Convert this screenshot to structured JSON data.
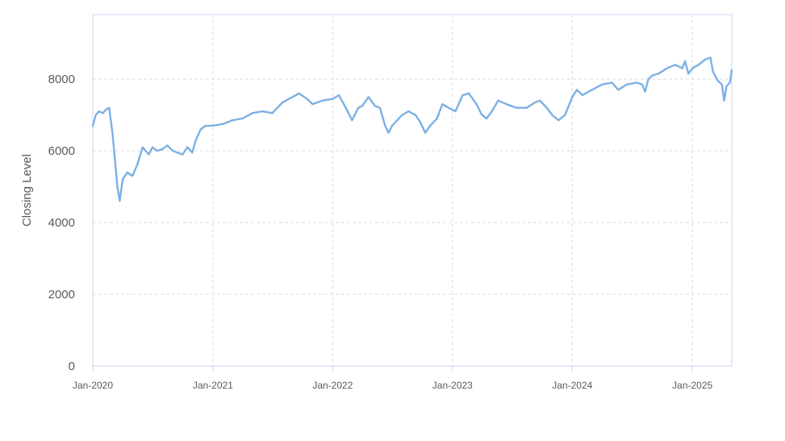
{
  "chart_data": {
    "type": "line",
    "title": "",
    "xlabel": "",
    "ylabel": "Closing Level",
    "x_range": [
      "2020-01-01",
      "2025-05-01"
    ],
    "ylim": [
      0,
      9800
    ],
    "grid": true,
    "y_ticks": [
      0,
      2000,
      4000,
      6000,
      8000
    ],
    "y_tick_labels": [
      "0",
      "2000",
      "4000",
      "6000",
      "8000"
    ],
    "x_ticks": [
      "2020-01-01",
      "2021-01-01",
      "2022-01-01",
      "2023-01-01",
      "2024-01-01",
      "2025-01-01"
    ],
    "x_tick_labels": [
      "Jan-2020",
      "Jan-2021",
      "Jan-2022",
      "Jan-2023",
      "Jan-2024",
      "Jan-2025"
    ],
    "series": [
      {
        "color": "#7cb0e4",
        "points": [
          [
            "2020-01-01",
            6700
          ],
          [
            "2020-01-10",
            7000
          ],
          [
            "2020-01-20",
            7100
          ],
          [
            "2020-02-01",
            7050
          ],
          [
            "2020-02-10",
            7150
          ],
          [
            "2020-02-20",
            7200
          ],
          [
            "2020-03-01",
            6500
          ],
          [
            "2020-03-10",
            5600
          ],
          [
            "2020-03-16",
            5000
          ],
          [
            "2020-03-23",
            4600
          ],
          [
            "2020-04-01",
            5200
          ],
          [
            "2020-04-15",
            5400
          ],
          [
            "2020-05-01",
            5300
          ],
          [
            "2020-05-15",
            5600
          ],
          [
            "2020-06-01",
            6100
          ],
          [
            "2020-06-10",
            6000
          ],
          [
            "2020-06-20",
            5900
          ],
          [
            "2020-07-01",
            6100
          ],
          [
            "2020-07-15",
            6000
          ],
          [
            "2020-08-01",
            6050
          ],
          [
            "2020-08-15",
            6150
          ],
          [
            "2020-09-01",
            6000
          ],
          [
            "2020-09-15",
            5950
          ],
          [
            "2020-10-01",
            5900
          ],
          [
            "2020-10-15",
            6100
          ],
          [
            "2020-10-30",
            5950
          ],
          [
            "2020-11-10",
            6300
          ],
          [
            "2020-11-25",
            6600
          ],
          [
            "2020-12-10",
            6700
          ],
          [
            "2021-01-01",
            6700
          ],
          [
            "2021-02-01",
            6750
          ],
          [
            "2021-03-01",
            6850
          ],
          [
            "2021-04-01",
            6900
          ],
          [
            "2021-05-01",
            7050
          ],
          [
            "2021-06-01",
            7100
          ],
          [
            "2021-07-01",
            7050
          ],
          [
            "2021-08-01",
            7350
          ],
          [
            "2021-09-01",
            7500
          ],
          [
            "2021-09-20",
            7600
          ],
          [
            "2021-10-15",
            7450
          ],
          [
            "2021-11-01",
            7300
          ],
          [
            "2021-12-01",
            7400
          ],
          [
            "2022-01-01",
            7450
          ],
          [
            "2022-01-20",
            7550
          ],
          [
            "2022-02-10",
            7200
          ],
          [
            "2022-03-01",
            6850
          ],
          [
            "2022-03-20",
            7200
          ],
          [
            "2022-04-01",
            7250
          ],
          [
            "2022-04-20",
            7500
          ],
          [
            "2022-05-10",
            7250
          ],
          [
            "2022-05-25",
            7200
          ],
          [
            "2022-06-10",
            6700
          ],
          [
            "2022-06-20",
            6500
          ],
          [
            "2022-07-01",
            6700
          ],
          [
            "2022-08-01",
            7000
          ],
          [
            "2022-08-20",
            7100
          ],
          [
            "2022-09-10",
            7000
          ],
          [
            "2022-09-25",
            6800
          ],
          [
            "2022-10-10",
            6500
          ],
          [
            "2022-10-25",
            6700
          ],
          [
            "2022-11-15",
            6900
          ],
          [
            "2022-12-01",
            7300
          ],
          [
            "2022-12-20",
            7200
          ],
          [
            "2023-01-10",
            7100
          ],
          [
            "2023-02-01",
            7550
          ],
          [
            "2023-02-20",
            7600
          ],
          [
            "2023-03-15",
            7300
          ],
          [
            "2023-04-01",
            7000
          ],
          [
            "2023-04-15",
            6900
          ],
          [
            "2023-05-01",
            7100
          ],
          [
            "2023-05-20",
            7400
          ],
          [
            "2023-06-15",
            7300
          ],
          [
            "2023-07-15",
            7200
          ],
          [
            "2023-08-15",
            7200
          ],
          [
            "2023-09-10",
            7350
          ],
          [
            "2023-09-25",
            7400
          ],
          [
            "2023-10-15",
            7200
          ],
          [
            "2023-11-01",
            7000
          ],
          [
            "2023-11-20",
            6850
          ],
          [
            "2023-12-10",
            7000
          ],
          [
            "2024-01-01",
            7500
          ],
          [
            "2024-01-15",
            7700
          ],
          [
            "2024-02-01",
            7550
          ],
          [
            "2024-03-01",
            7700
          ],
          [
            "2024-04-01",
            7850
          ],
          [
            "2024-05-01",
            7900
          ],
          [
            "2024-05-20",
            7700
          ],
          [
            "2024-06-15",
            7850
          ],
          [
            "2024-07-15",
            7900
          ],
          [
            "2024-08-01",
            7850
          ],
          [
            "2024-08-10",
            7650
          ],
          [
            "2024-08-20",
            8000
          ],
          [
            "2024-09-01",
            8100
          ],
          [
            "2024-09-20",
            8150
          ],
          [
            "2024-10-15",
            8300
          ],
          [
            "2024-11-10",
            8400
          ],
          [
            "2024-12-01",
            8300
          ],
          [
            "2024-12-10",
            8500
          ],
          [
            "2024-12-20",
            8150
          ],
          [
            "2025-01-01",
            8300
          ],
          [
            "2025-01-20",
            8400
          ],
          [
            "2025-02-10",
            8550
          ],
          [
            "2025-02-25",
            8600
          ],
          [
            "2025-03-05",
            8200
          ],
          [
            "2025-03-20",
            7950
          ],
          [
            "2025-04-01",
            7850
          ],
          [
            "2025-04-08",
            7400
          ],
          [
            "2025-04-15",
            7800
          ],
          [
            "2025-04-25",
            7900
          ],
          [
            "2025-05-01",
            8250
          ]
        ]
      }
    ]
  }
}
